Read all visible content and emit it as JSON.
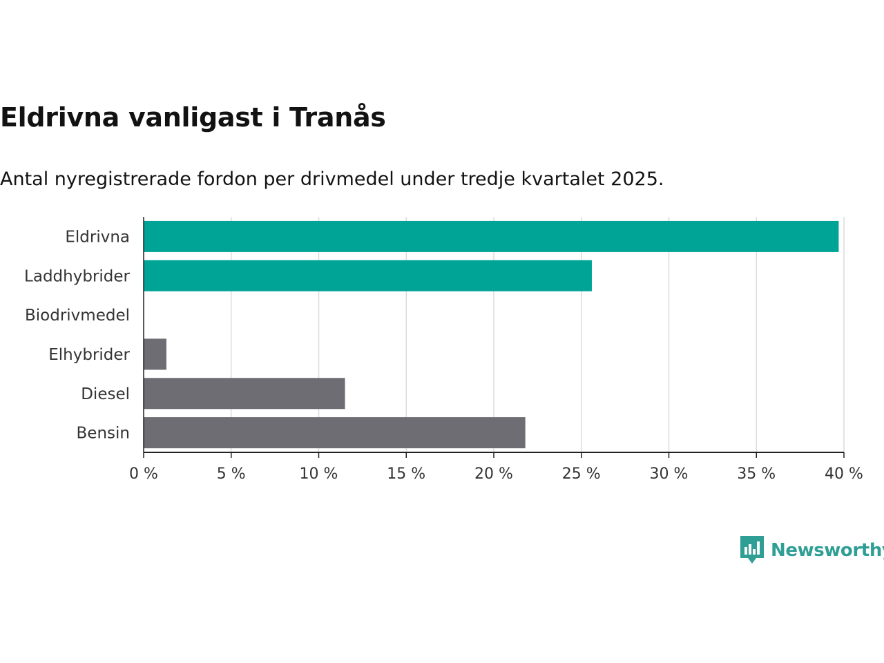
{
  "chart_data": {
    "type": "bar",
    "orientation": "horizontal",
    "title": "Eldrivna vanligast i Tranås",
    "subtitle": "Antal nyregistrerade fordon per drivmedel under tredje kvartalet 2025.",
    "categories": [
      "Eldrivna",
      "Laddhybrider",
      "Biodrivmedel",
      "Elhybrider",
      "Diesel",
      "Bensin"
    ],
    "values": [
      39.7,
      25.6,
      0,
      1.3,
      11.5,
      21.8
    ],
    "unit": "%",
    "xlim": [
      0,
      40
    ],
    "xticks": [
      0,
      5,
      10,
      15,
      20,
      25,
      30,
      35,
      40
    ],
    "xtick_labels": [
      "0 %",
      "5 %",
      "10 %",
      "15 %",
      "20 %",
      "25 %",
      "30 %",
      "35 %",
      "40 %"
    ],
    "xlabel": "",
    "ylabel": "",
    "grid": true,
    "bar_colors": [
      "#00a497",
      "#00a497",
      "#00a497",
      "#6e6d74",
      "#6e6d74",
      "#6e6d74"
    ]
  },
  "brand": {
    "name": "Newsworthy",
    "color": "#2f9e95",
    "logo_icon": "newsworthy-logo-icon"
  }
}
